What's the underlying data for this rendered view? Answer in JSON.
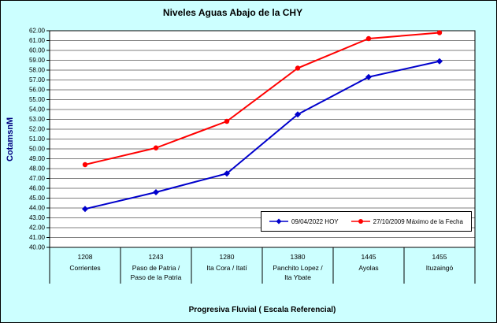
{
  "chart_data": {
    "type": "line",
    "title": "Niveles Aguas Abajo de la CHY",
    "ylabel": "CotamsnM",
    "xlabel": "Progresiva Fluvial ( Escala Referencial)",
    "ylim": [
      40,
      62
    ],
    "ytick_step": 1,
    "ytick_decimals": 2,
    "grid": true,
    "legend_position": "inside-bottom-right",
    "colors": {
      "background": "#CCFFFF",
      "plot_background": "#FFFFFF",
      "gridline": "#000000"
    },
    "categories": [
      {
        "km": "1208",
        "name_lines": [
          "Corrientes"
        ]
      },
      {
        "km": "1243",
        "name_lines": [
          "Paso de Patria /",
          "Paso de la Patria"
        ]
      },
      {
        "km": "1280",
        "name_lines": [
          "Ita Cora / Itatí"
        ]
      },
      {
        "km": "1380",
        "name_lines": [
          "Panchito Lopez /",
          "Ita Ybate"
        ]
      },
      {
        "km": "1445",
        "name_lines": [
          "Ayolas"
        ]
      },
      {
        "km": "1455",
        "name_lines": [
          "Ituzaingó"
        ]
      }
    ],
    "series": [
      {
        "name": "09/04/2022 HOY",
        "color": "#0000CC",
        "marker": "diamond",
        "values": [
          43.9,
          45.6,
          47.5,
          53.5,
          57.3,
          58.9
        ]
      },
      {
        "name": "27/10/2009 Máximo de la Fecha",
        "color": "#FF0000",
        "marker": "circle",
        "values": [
          48.4,
          50.1,
          52.8,
          58.2,
          61.2,
          61.8
        ]
      }
    ]
  }
}
